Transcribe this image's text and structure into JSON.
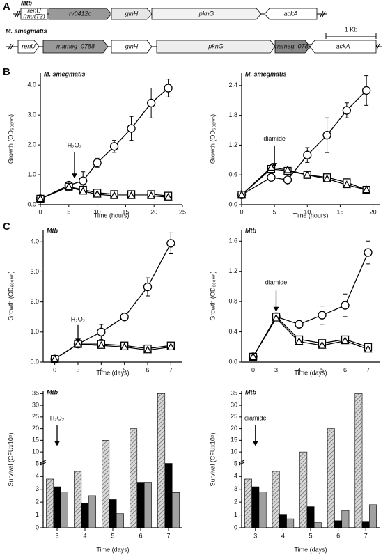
{
  "panel_labels": [
    "A",
    "B",
    "C"
  ],
  "gene_map": {
    "rows": [
      {
        "label": "Mtb",
        "genes": [
          {
            "label": "renU",
            "sublabel": "(mutT3)"
          },
          {
            "label": "rv0412c"
          },
          {
            "label": "glnH"
          },
          {
            "label": "pknG"
          },
          {
            "label": "ackA"
          }
        ]
      },
      {
        "label": "M. smegmatis",
        "genes": [
          {
            "label": "renU"
          },
          {
            "label": "mameg_0788"
          },
          {
            "label": "glnH"
          },
          {
            "label": "pknG"
          },
          {
            "label": "mameg_0789"
          },
          {
            "label": "ackA"
          }
        ]
      }
    ],
    "scale_bar": "1 Kb"
  },
  "chart_data": [
    {
      "type": "line",
      "title": "M. smegmatis",
      "x_label": "Time (hours)",
      "y_label": "Growth (OD₆₀₀ₙₘ)",
      "x": [
        0,
        5,
        7.5,
        10,
        13,
        16,
        19.5,
        22.5
      ],
      "xlim": [
        0,
        25
      ],
      "xticks": [
        0,
        5,
        10,
        15,
        20,
        25
      ],
      "ylim": [
        0,
        4.4
      ],
      "yticks": [
        {
          "value": 0,
          "label": "0.0"
        },
        {
          "value": 1,
          "label": "1.0"
        },
        {
          "value": 2,
          "label": "2.0"
        },
        {
          "value": 3,
          "label": "3.0"
        },
        {
          "value": 4,
          "label": "4.0"
        }
      ],
      "annotation": {
        "text": "H₂O₂",
        "at": 6
      },
      "series": [
        {
          "marker": "circle",
          "color": "#000000",
          "values": [
            0.2,
            0.65,
            0.8,
            1.4,
            1.95,
            2.55,
            3.4,
            3.9
          ],
          "errors": [
            0.05,
            0.05,
            0.3,
            0.15,
            0.2,
            0.4,
            0.5,
            0.3
          ]
        },
        {
          "marker": "square",
          "color": "#000000",
          "values": [
            0.2,
            0.6,
            0.5,
            0.4,
            0.35,
            0.35,
            0.35,
            0.3
          ]
        },
        {
          "marker": "triangle",
          "color": "#000000",
          "values": [
            0.2,
            0.6,
            0.45,
            0.35,
            0.3,
            0.3,
            0.3,
            0.25
          ]
        }
      ]
    },
    {
      "type": "line",
      "title": "M. smegmatis",
      "x_label": "Time (hours)",
      "y_label": "Growth (OD₆₀₀ₙₘ)",
      "x": [
        0,
        4.5,
        7,
        10,
        13,
        16,
        19
      ],
      "xlim": [
        0,
        21
      ],
      "xticks": [
        0,
        5,
        10,
        15,
        20
      ],
      "ylim": [
        0,
        2.65
      ],
      "yticks": [
        {
          "value": 0,
          "label": "0.0"
        },
        {
          "value": 0.6,
          "label": "0.6"
        },
        {
          "value": 1.2,
          "label": "1.2"
        },
        {
          "value": 1.8,
          "label": "1.8"
        },
        {
          "value": 2.4,
          "label": "2.4"
        }
      ],
      "annotation": {
        "text": "diamide",
        "at": 5
      },
      "series": [
        {
          "marker": "circle",
          "color": "#000000",
          "values": [
            0.2,
            0.55,
            0.5,
            1.0,
            1.4,
            1.9,
            2.3
          ],
          "errors": [
            0.05,
            0.05,
            0.1,
            0.15,
            0.35,
            0.15,
            0.3
          ]
        },
        {
          "marker": "square",
          "color": "#000000",
          "values": [
            0.2,
            0.72,
            0.68,
            0.6,
            0.55,
            0.45,
            0.3
          ]
        },
        {
          "marker": "triangle",
          "color": "#000000",
          "values": [
            0.2,
            0.75,
            0.7,
            0.6,
            0.52,
            0.4,
            0.3
          ]
        }
      ]
    },
    {
      "type": "line",
      "title": "Mtb",
      "x_label": "Time (days)",
      "y_label": "Growth (OD₆₀₀ₙₘ)",
      "categories": [
        "0",
        "3",
        "4",
        "5",
        "6",
        "7"
      ],
      "ylim": [
        0,
        4.4
      ],
      "yticks": [
        {
          "value": 0,
          "label": "0.0"
        },
        {
          "value": 1,
          "label": "1.0"
        },
        {
          "value": 2,
          "label": "2.0"
        },
        {
          "value": 3,
          "label": "3.0"
        },
        {
          "value": 4,
          "label": "4.0"
        }
      ],
      "annotation": {
        "text": "H₂O₂",
        "at": "3"
      },
      "series": [
        {
          "marker": "circle",
          "color": "#000000",
          "values": [
            0.1,
            0.6,
            1.0,
            1.5,
            2.5,
            3.95
          ],
          "errors": [
            0.05,
            0.08,
            0.25,
            0.1,
            0.3,
            0.35
          ]
        },
        {
          "marker": "square",
          "color": "#000000",
          "values": [
            0.1,
            0.6,
            0.6,
            0.55,
            0.45,
            0.55
          ]
        },
        {
          "marker": "triangle",
          "color": "#000000",
          "values": [
            0.1,
            0.6,
            0.55,
            0.5,
            0.4,
            0.5
          ]
        }
      ]
    },
    {
      "type": "line",
      "title": "Mtb",
      "x_label": "Time (days)",
      "y_label": "Growth (OD₆₀₀ₙₘ)",
      "categories": [
        "0",
        "3",
        "4",
        "5",
        "6",
        "7"
      ],
      "ylim": [
        0,
        1.75
      ],
      "yticks": [
        {
          "value": 0,
          "label": "0.0"
        },
        {
          "value": 0.4,
          "label": "0.4"
        },
        {
          "value": 0.8,
          "label": "0.8"
        },
        {
          "value": 1.2,
          "label": "1.2"
        },
        {
          "value": 1.6,
          "label": "1.6"
        }
      ],
      "annotation": {
        "text": "diamide",
        "at": "3"
      },
      "series": [
        {
          "marker": "circle",
          "color": "#000000",
          "values": [
            0.07,
            0.6,
            0.5,
            0.62,
            0.75,
            1.45
          ],
          "errors": [
            0.03,
            0.05,
            0.04,
            0.12,
            0.15,
            0.15
          ]
        },
        {
          "marker": "square",
          "color": "#000000",
          "values": [
            0.07,
            0.6,
            0.3,
            0.25,
            0.3,
            0.2
          ]
        },
        {
          "marker": "triangle",
          "color": "#000000",
          "values": [
            0.07,
            0.58,
            0.27,
            0.22,
            0.28,
            0.17
          ]
        }
      ]
    },
    {
      "type": "bar",
      "title": "Mtb",
      "x_label": "Time (days)",
      "y_label": "Survival (CFUx10⁸)",
      "categories": [
        "3",
        "4",
        "5",
        "6",
        "7"
      ],
      "ylim": [
        0,
        36
      ],
      "ybreak": 5,
      "yticks": [
        0,
        1,
        2,
        3,
        4,
        5,
        10,
        15,
        20,
        25,
        30,
        35
      ],
      "annotation": {
        "text": "H₂O₂",
        "at": "3"
      },
      "series": [
        {
          "color": "#bbbbbb",
          "hatch": true,
          "values": [
            3.8,
            4.4,
            15,
            20,
            35
          ]
        },
        {
          "color": "#000000",
          "values": [
            3.2,
            1.9,
            2.2,
            3.55,
            5.1
          ]
        },
        {
          "color": "#a0a0a0",
          "values": [
            2.8,
            2.5,
            1.1,
            3.55,
            2.75
          ]
        }
      ]
    },
    {
      "type": "bar",
      "title": "Mtb",
      "x_label": "Time (days)",
      "y_label": "Survival (CFUx10⁸)",
      "categories": [
        "3",
        "4",
        "5",
        "6",
        "7"
      ],
      "ylim": [
        0,
        36
      ],
      "ybreak": 5,
      "yticks": [
        0,
        1,
        2,
        3,
        4,
        5,
        10,
        15,
        20,
        25,
        30,
        35
      ],
      "annotation": {
        "text": "diamide",
        "at": "3"
      },
      "series": [
        {
          "color": "#bbbbbb",
          "hatch": true,
          "values": [
            3.8,
            4.4,
            10,
            20,
            35
          ]
        },
        {
          "color": "#000000",
          "values": [
            3.2,
            1.05,
            1.65,
            0.55,
            0.45
          ]
        },
        {
          "color": "#a0a0a0",
          "values": [
            2.8,
            0.7,
            0.4,
            1.35,
            1.8
          ]
        }
      ]
    }
  ]
}
